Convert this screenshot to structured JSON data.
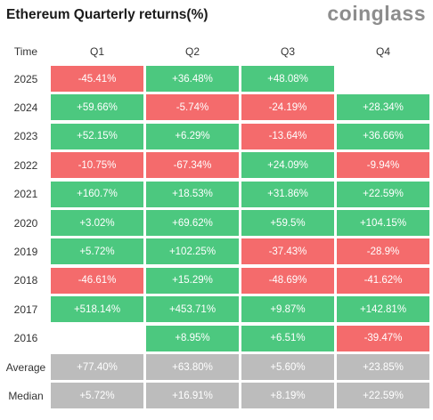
{
  "header": {
    "title": "Ethereum Quarterly returns(%)",
    "brand": "coinglass"
  },
  "colors": {
    "positive": "#4cc87f",
    "negative": "#f46b6c",
    "summary": "#bcbcbc"
  },
  "chart_data": {
    "type": "table",
    "title": "Ethereum Quarterly returns(%)",
    "columns": [
      "Time",
      "Q1",
      "Q2",
      "Q3",
      "Q4"
    ],
    "rows": [
      {
        "label": "2025",
        "cells": [
          "-45.41%",
          "+36.48%",
          "+48.08%",
          ""
        ]
      },
      {
        "label": "2024",
        "cells": [
          "+59.66%",
          "-5.74%",
          "-24.19%",
          "+28.34%"
        ]
      },
      {
        "label": "2023",
        "cells": [
          "+52.15%",
          "+6.29%",
          "-13.64%",
          "+36.66%"
        ]
      },
      {
        "label": "2022",
        "cells": [
          "-10.75%",
          "-67.34%",
          "+24.09%",
          "-9.94%"
        ]
      },
      {
        "label": "2021",
        "cells": [
          "+160.7%",
          "+18.53%",
          "+31.86%",
          "+22.59%"
        ]
      },
      {
        "label": "2020",
        "cells": [
          "+3.02%",
          "+69.62%",
          "+59.5%",
          "+104.15%"
        ]
      },
      {
        "label": "2019",
        "cells": [
          "+5.72%",
          "+102.25%",
          "-37.43%",
          "-28.9%"
        ]
      },
      {
        "label": "2018",
        "cells": [
          "-46.61%",
          "+15.29%",
          "-48.69%",
          "-41.62%"
        ]
      },
      {
        "label": "2017",
        "cells": [
          "+518.14%",
          "+453.71%",
          "+9.87%",
          "+142.81%"
        ]
      },
      {
        "label": "2016",
        "cells": [
          "",
          "+8.95%",
          "+6.51%",
          "-39.47%"
        ]
      }
    ],
    "summary": [
      {
        "label": "Average",
        "cells": [
          "+77.40%",
          "+63.80%",
          "+5.60%",
          "+23.85%"
        ]
      },
      {
        "label": "Median",
        "cells": [
          "+5.72%",
          "+16.91%",
          "+8.19%",
          "+22.59%"
        ]
      }
    ]
  }
}
